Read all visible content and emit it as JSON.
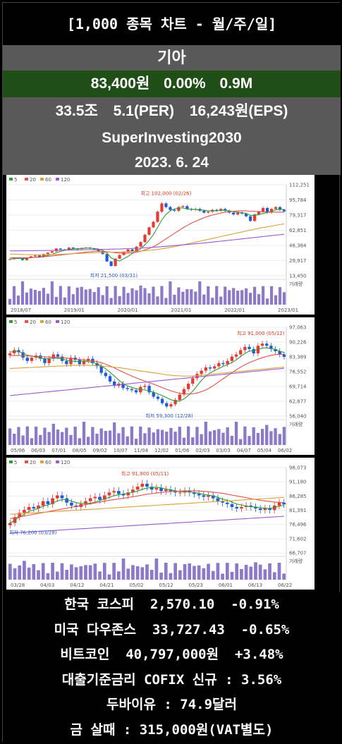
{
  "header": {
    "title": "[1,000 종목 차트 - 월/주/일]",
    "stock_name": "기아",
    "price": "83,400원",
    "change": "0.00%",
    "volume": "0.9M",
    "market_cap": "33.5조",
    "per": "5.1(PER)",
    "eps": "16,243원(EPS)",
    "blog": "SuperInvesting2030",
    "date": "2023. 6. 24"
  },
  "colors": {
    "up": "#e53935",
    "down": "#1e5bd8",
    "ma5": "#2e9e2e",
    "ma20": "#e0524e",
    "ma60": "#d9a23a",
    "ma120": "#9b59d0",
    "header_green": "#1f4e16",
    "header_gray": "#595959"
  },
  "legend": [
    "5",
    "20",
    "60",
    "120"
  ],
  "volume_label": "거래량",
  "chart_data": [
    {
      "type": "candlestick",
      "period": "monthly",
      "y_ticks": [
        112251,
        95784,
        79317,
        62851,
        46384,
        29917,
        13450
      ],
      "ylim": [
        13450,
        112251
      ],
      "x_ticks": [
        "2018/07",
        "2019/01",
        "2020/01",
        "2021/01",
        "2022/01",
        "2023/01"
      ],
      "high_label": "최고 102,000 (02/26)",
      "low_label": "최저 21,500 (03/31)",
      "closes": [
        31500,
        33000,
        32000,
        30500,
        33000,
        34500,
        35500,
        34000,
        37000,
        38500,
        40000,
        43000,
        42000,
        41500,
        44000,
        43000,
        42500,
        43500,
        44000,
        43000,
        42000,
        40000,
        37000,
        29000,
        24000,
        32000,
        36000,
        39000,
        42000,
        40000,
        45000,
        50000,
        58000,
        66000,
        72000,
        83000,
        92000,
        88000,
        85000,
        84000,
        88000,
        89000,
        86000,
        85000,
        86000,
        84000,
        82000,
        83000,
        85000,
        84000,
        86000,
        84000,
        82000,
        80000,
        82000,
        81000,
        78000,
        73000,
        80000,
        83000,
        87000,
        82000,
        86000,
        88000,
        85000,
        83400
      ],
      "ma": {
        "5": [
          31500,
          32000,
          32500,
          32000,
          32500,
          33000,
          33500,
          33500,
          34500,
          35500,
          36500,
          38500,
          40000,
          41000,
          42000,
          42500,
          43000,
          43000,
          43500,
          43500,
          43000,
          42500,
          41000,
          38000,
          33000,
          30500,
          29500,
          32000,
          34500,
          37500,
          40000,
          43000,
          47000,
          52000,
          58000,
          66000,
          74000,
          80000,
          84000,
          86000,
          87000,
          87000,
          86000,
          85500,
          85500,
          85000,
          84500,
          84000,
          84000,
          84000,
          84500,
          84500,
          84000,
          83000,
          82500,
          82000,
          81000,
          79000,
          79000,
          80000,
          81000,
          82000,
          83500,
          85000,
          85500,
          85500
        ],
        "20": [
          33000,
          33000,
          33000,
          33000,
          33000,
          33000,
          33500,
          33500,
          34000,
          34500,
          35000,
          35500,
          36000,
          36500,
          37000,
          37500,
          38000,
          38500,
          39000,
          39500,
          40000,
          40200,
          40000,
          39500,
          39000,
          38500,
          38000,
          38000,
          38000,
          38500,
          39000,
          40000,
          41500,
          43000,
          45000,
          47500,
          50500,
          53500,
          56500,
          59500,
          62500,
          65500,
          68000,
          70500,
          72500,
          74500,
          76500,
          78000,
          79500,
          80500,
          81500,
          82500,
          83000,
          83500,
          84000,
          84000,
          84000,
          83500,
          83500,
          83000,
          83000,
          82500,
          82500,
          82500,
          82500,
          82500
        ],
        "60": [
          37000,
          37000,
          36800,
          36600,
          36400,
          36300,
          36200,
          36200,
          36200,
          36300,
          36400,
          36600,
          36800,
          37000,
          37200,
          37400,
          37600,
          37800,
          38000,
          38200,
          38400,
          38600,
          38800,
          38900,
          39000,
          39100,
          39200,
          39400,
          39600,
          39800,
          40000,
          40300,
          40600,
          41000,
          41500,
          42000,
          42700,
          43400,
          44200,
          45000,
          46000,
          47000,
          48000,
          49000,
          50000,
          51000,
          52000,
          53000,
          54000,
          55000,
          56000,
          57000,
          58000,
          59000,
          60000,
          61000,
          62000,
          63000,
          64000,
          65000,
          65800,
          66600,
          67400,
          68200,
          69000,
          69800
        ],
        "120": [
          40500,
          40500,
          40500,
          40600,
          40600,
          40700,
          40700,
          40800,
          40800,
          40900,
          41000,
          41000,
          41100,
          41200,
          41300,
          41400,
          41500,
          41600,
          41700,
          41800,
          41900,
          42000,
          42100,
          42200,
          42300,
          42400,
          42500,
          42700,
          42900,
          43100,
          43300,
          43500,
          43800,
          44100,
          44400,
          44700,
          45000,
          45400,
          45800,
          46200,
          46600,
          47000,
          47400,
          47800,
          48200,
          48600,
          49000,
          49500,
          50000,
          50500,
          51000,
          51500,
          52000,
          52500,
          53000,
          53500,
          54000,
          54500,
          55000,
          55500,
          56000,
          56500,
          57000,
          57500,
          58000,
          58500
        ]
      }
    },
    {
      "type": "candlestick",
      "period": "weekly",
      "y_ticks": [
        97063,
        90226,
        83389,
        76552,
        69714,
        62877,
        56040
      ],
      "ylim": [
        56040,
        97063
      ],
      "x_ticks": [
        "05/06",
        "06/03",
        "07/01",
        "08/05",
        "09/02",
        "10/07",
        "11/04",
        "12/02",
        "01/06",
        "02/03",
        "03/03",
        "04/07",
        "05/04",
        "06/02"
      ],
      "high_label": "최고 91,000 (05/12)",
      "low_label": "최저 59,300 (12/28)",
      "closes": [
        85000,
        86500,
        85500,
        83000,
        81500,
        83000,
        84000,
        82500,
        80500,
        82500,
        84500,
        83500,
        81500,
        80000,
        83000,
        82000,
        80000,
        81500,
        82500,
        80500,
        79000,
        76000,
        74500,
        72000,
        70000,
        71000,
        69000,
        68500,
        68000,
        67000,
        69500,
        70000,
        67000,
        65000,
        64000,
        62000,
        60500,
        61500,
        63500,
        66000,
        68500,
        71000,
        73500,
        75500,
        77000,
        78500,
        78000,
        79000,
        80500,
        80000,
        81500,
        83500,
        84500,
        86500,
        88000,
        87000,
        85000,
        88500,
        89500,
        88500,
        87000,
        86000,
        84500,
        83400
      ],
      "ma": {
        "5": [
          85500,
          86000,
          85800,
          85000,
          84200,
          83700,
          83400,
          82800,
          82500,
          82600,
          82800,
          82800,
          82400,
          81900,
          81400,
          81300,
          81300,
          81400,
          81200,
          80800,
          80200,
          79200,
          77900,
          76300,
          74500,
          72700,
          71000,
          70000,
          69300,
          68600,
          68300,
          68100,
          67700,
          67000,
          66300,
          65500,
          64500,
          63600,
          63000,
          63000,
          64000,
          65500,
          67500,
          70000,
          72500,
          74500,
          76000,
          77000,
          78000,
          79000,
          79800,
          80800,
          82000,
          83500,
          85000,
          86000,
          86300,
          86800,
          87400,
          87600,
          87200,
          86800,
          86000,
          85400
        ],
        "20": [
          84000,
          84000,
          84000,
          83900,
          83800,
          83700,
          83600,
          83500,
          83400,
          83300,
          83200,
          83100,
          83000,
          82800,
          82600,
          82400,
          82200,
          82000,
          81800,
          81500,
          81200,
          80700,
          80000,
          79200,
          78300,
          77300,
          76300,
          75400,
          74500,
          73700,
          72900,
          72200,
          71500,
          70800,
          70000,
          69200,
          68400,
          67700,
          67100,
          66600,
          66300,
          66200,
          66300,
          66700,
          67300,
          68100,
          69200,
          70500,
          71900,
          73300,
          74700,
          76100,
          77400,
          78600,
          79700,
          80700,
          81500,
          82300,
          83000,
          83600,
          84100,
          84400,
          84600,
          84600
        ],
        "60": [
          78000,
          78100,
          78200,
          78300,
          78400,
          78500,
          78600,
          78700,
          78800,
          78900,
          79000,
          79100,
          79200,
          79300,
          79400,
          79500,
          79500,
          79500,
          79500,
          79400,
          79300,
          79200,
          79000,
          78800,
          78600,
          78400,
          78100,
          77800,
          77500,
          77200,
          76900,
          76600,
          76300,
          76000,
          75700,
          75400,
          75100,
          74900,
          74700,
          74600,
          74500,
          74500,
          74600,
          74700,
          74900,
          75100,
          75300,
          75500,
          75700,
          75900,
          76100,
          76300,
          76500,
          76700,
          76900,
          77100,
          77300,
          77500,
          77700,
          77900,
          78100,
          78300,
          78500,
          78700
        ],
        "120": [
          65500,
          65700,
          65900,
          66100,
          66300,
          66500,
          66700,
          66900,
          67100,
          67300,
          67500,
          67700,
          67900,
          68100,
          68300,
          68500,
          68700,
          68900,
          69100,
          69300,
          69500,
          69700,
          69900,
          70100,
          70300,
          70500,
          70700,
          70900,
          71100,
          71300,
          71500,
          71700,
          71900,
          72100,
          72300,
          72500,
          72700,
          72900,
          73100,
          73300,
          73500,
          73700,
          73900,
          74100,
          74300,
          74500,
          74700,
          74900,
          75100,
          75300,
          75500,
          75700,
          75900,
          76100,
          76300,
          76500,
          76700,
          76900,
          77100,
          77300,
          77500,
          77700,
          77900,
          78100
        ]
      }
    },
    {
      "type": "candlestick",
      "period": "daily",
      "y_ticks": [
        96073,
        91180,
        86285,
        81391,
        76496,
        71602,
        66707
      ],
      "ylim": [
        66707,
        96073
      ],
      "x_ticks": [
        "03/28",
        "04/03",
        "04/12",
        "04/21",
        "05/02",
        "05/12",
        "05/23",
        "06/01",
        "06/13",
        "06/22"
      ],
      "high_label": "최고 91,900 (05/11)",
      "low_label": "최저 76,200 (03/28)",
      "closes": [
        77000,
        79000,
        80500,
        81500,
        82500,
        82000,
        83000,
        84500,
        83500,
        85500,
        86500,
        85500,
        84000,
        83000,
        82500,
        83500,
        84500,
        85500,
        86000,
        85000,
        86500,
        87500,
        88000,
        87000,
        86500,
        87500,
        88500,
        89500,
        90500,
        89500,
        88500,
        89000,
        88000,
        88500,
        88000,
        87500,
        87500,
        88000,
        87500,
        87000,
        86500,
        86000,
        86500,
        85500,
        84500,
        84000,
        83500,
        82500,
        82000,
        82500,
        83000,
        82500,
        82000,
        81500,
        82000,
        81500,
        83000,
        84000,
        83400
      ],
      "ma": {
        "5": [
          77000,
          78000,
          79000,
          80000,
          81000,
          81500,
          82000,
          82800,
          83200,
          83800,
          84600,
          85000,
          85000,
          84500,
          84000,
          83700,
          83700,
          83800,
          84200,
          84700,
          85300,
          85800,
          86400,
          86700,
          87000,
          87200,
          87600,
          88000,
          88600,
          89000,
          89200,
          89300,
          89100,
          88700,
          88400,
          88100,
          87800,
          87800,
          87700,
          87500,
          87200,
          86800,
          86600,
          86300,
          85800,
          85200,
          84800,
          84200,
          83500,
          83200,
          82800,
          82600,
          82500,
          82300,
          82100,
          82000,
          82300,
          82800,
          83100
        ],
        "20": [
          78500,
          78800,
          79100,
          79400,
          79700,
          80000,
          80300,
          80600,
          80900,
          81200,
          81500,
          81800,
          82100,
          82400,
          82700,
          83000,
          83300,
          83600,
          83900,
          84200,
          84500,
          84800,
          85000,
          85300,
          85500,
          85800,
          86000,
          86300,
          86600,
          86900,
          87100,
          87300,
          87500,
          87700,
          87800,
          87900,
          88000,
          88100,
          88100,
          88100,
          88000,
          87900,
          87800,
          87600,
          87400,
          87200,
          86900,
          86600,
          86300,
          86000,
          85700,
          85400,
          85100,
          84800,
          84600,
          84400,
          84200,
          84100,
          84000
        ],
        "60": [
          80000,
          80100,
          80200,
          80300,
          80400,
          80500,
          80600,
          80700,
          80800,
          80900,
          81000,
          81100,
          81200,
          81300,
          81400,
          81500,
          81600,
          81700,
          81800,
          81900,
          82000,
          82100,
          82200,
          82300,
          82400,
          82500,
          82600,
          82700,
          82800,
          82900,
          83000,
          83100,
          83200,
          83300,
          83400,
          83500,
          83600,
          83700,
          83800,
          83900,
          84000,
          84100,
          84200,
          84300,
          84400,
          84500,
          84600,
          84700,
          84800,
          84900,
          85000,
          85100,
          85200,
          85300,
          85400,
          85500,
          85600,
          85700,
          85800
        ],
        "120": [
          73500,
          73600,
          73700,
          73800,
          73900,
          74000,
          74100,
          74200,
          74300,
          74400,
          74500,
          74600,
          74700,
          74800,
          74900,
          75000,
          75100,
          75200,
          75300,
          75400,
          75500,
          75600,
          75700,
          75800,
          75900,
          76000,
          76100,
          76200,
          76300,
          76400,
          76500,
          76600,
          76700,
          76800,
          76900,
          77000,
          77100,
          77200,
          77300,
          77400,
          77500,
          77600,
          77700,
          77800,
          77900,
          78000,
          78100,
          78200,
          78300,
          78400,
          78500,
          78600,
          78700,
          78800,
          78900,
          79000,
          79100,
          79200,
          79300
        ]
      }
    }
  ],
  "footer": {
    "kospi": "한국 코스피  2,570.10  -0.91%",
    "dow": "미국 다우존스  33,727.43  -0.65%",
    "bitcoin": "비트코인  40,797,000원  +3.48%",
    "cofix": "대출기준금리 COFIX 신규 : 3.56%",
    "dubai": "두바이유 : 74.9달러",
    "gold": "금 살때 : 315,000원(VAT별도)"
  }
}
